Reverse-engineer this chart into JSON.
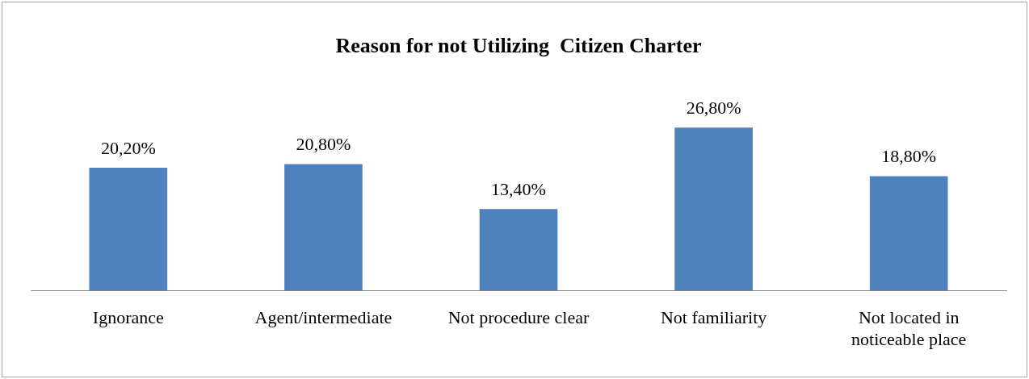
{
  "chart_data": {
    "type": "bar",
    "title": "Reason for not Utilizing  Citizen Charter",
    "categories": [
      "Ignorance",
      "Agent/intermediate",
      "Not procedure clear",
      "Not familiarity",
      "Not located in noticeable place"
    ],
    "values": [
      20.2,
      20.8,
      13.4,
      26.8,
      18.8
    ],
    "value_labels": [
      "20,20%",
      "20,80%",
      "13,40%",
      "26,80%",
      "18,80%"
    ],
    "color": "#4f81bd",
    "grid": false,
    "legend": false
  }
}
